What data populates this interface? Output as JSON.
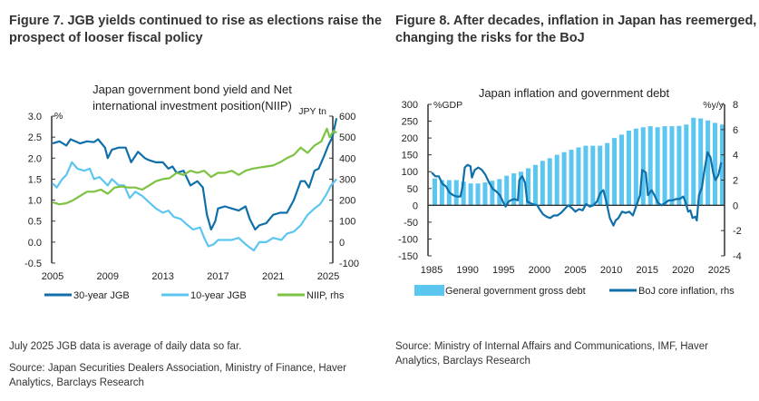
{
  "left_figure": {
    "title_line1": "Figure 7. JGB yields continued to rise as elections raise the",
    "title_line2": "prospect of looser fiscal policy",
    "note": "July 2025 JGB data is average of daily data so far.",
    "source_line1": "Source: Japan Securities Dealers Association, Ministry of Finance, Haver",
    "source_line2": "Analytics, Barclays Research"
  },
  "right_figure": {
    "title_line1": "Figure 8. After decades, inflation in Japan has reemerged,",
    "title_line2": "changing the risks for the BoJ",
    "source_line1": "Source: Ministry of Internal Affairs and Communications, IMF, Haver",
    "source_line2": "Analytics, Barclays Research"
  },
  "chart_data": [
    {
      "type": "line",
      "title_line1": "Japan government bond yield and Net",
      "title_line2": "international investment position(NIIP)",
      "ylabel": "%",
      "y2label": "JPY tn",
      "ylim": [
        -0.5,
        3.0
      ],
      "y2lim": [
        -100,
        600
      ],
      "xlim": [
        2005,
        2026
      ],
      "yticks": [
        "3.0",
        "2.5",
        "2.0",
        "1.5",
        "1.0",
        "0.5",
        "0.0",
        "-0.5"
      ],
      "y2ticks": [
        "600",
        "500",
        "400",
        "300",
        "200",
        "100",
        "0",
        "-100"
      ],
      "xticks": [
        "2005",
        "2009",
        "2013",
        "2017",
        "2021",
        "2025"
      ],
      "legend_position": "bottom",
      "series": [
        {
          "name": "30-year JGB",
          "axis": "left",
          "color": "#0f6fa8",
          "x": [
            2005,
            2005.5,
            2006,
            2006.3,
            2007,
            2007.5,
            2008,
            2008.3,
            2008.8,
            2009,
            2009.3,
            2009.8,
            2010.3,
            2010.7,
            2011.2,
            2011.7,
            2012,
            2012.5,
            2013,
            2013.4,
            2013.7,
            2014,
            2014.5,
            2015,
            2015.5,
            2015.9,
            2016.2,
            2016.5,
            2016.8,
            2017,
            2017.5,
            2018,
            2018.5,
            2019,
            2019.3,
            2019.7,
            2020,
            2020.5,
            2021,
            2021.5,
            2022,
            2022.5,
            2023,
            2023.3,
            2023.6,
            2024,
            2024.3,
            2024.7,
            2025,
            2025.3,
            2025.6
          ],
          "values": [
            2.35,
            2.4,
            2.3,
            2.45,
            2.35,
            2.4,
            2.38,
            2.45,
            2.25,
            2.0,
            2.2,
            2.25,
            2.25,
            1.9,
            2.15,
            2.0,
            1.95,
            1.9,
            1.9,
            1.75,
            1.8,
            1.65,
            1.7,
            1.35,
            1.45,
            1.3,
            0.65,
            0.3,
            0.5,
            0.8,
            0.85,
            0.8,
            0.75,
            0.85,
            0.55,
            0.3,
            0.4,
            0.45,
            0.65,
            0.7,
            0.7,
            1.0,
            1.45,
            1.45,
            1.3,
            1.7,
            1.75,
            2.05,
            2.3,
            2.5,
            2.95
          ]
        },
        {
          "name": "10-year JGB",
          "axis": "left",
          "color": "#5bc6f0",
          "x": [
            2005,
            2005.3,
            2005.7,
            2006,
            2006.4,
            2006.8,
            2007.3,
            2007.7,
            2008,
            2008.4,
            2008.7,
            2009,
            2009.3,
            2009.8,
            2010.2,
            2010.6,
            2011,
            2011.5,
            2012,
            2012.5,
            2013,
            2013.4,
            2013.8,
            2014.3,
            2014.8,
            2015.2,
            2015.7,
            2016,
            2016.3,
            2016.7,
            2017,
            2017.5,
            2018,
            2018.5,
            2019,
            2019.6,
            2020,
            2020.5,
            2021,
            2021.6,
            2022,
            2022.5,
            2023,
            2023.5,
            2024,
            2024.4,
            2024.8,
            2025.2,
            2025.6
          ],
          "values": [
            1.4,
            1.3,
            1.5,
            1.6,
            1.9,
            1.75,
            1.7,
            1.75,
            1.5,
            1.55,
            1.45,
            1.35,
            1.5,
            1.35,
            1.35,
            1.05,
            1.2,
            1.1,
            0.95,
            0.8,
            0.7,
            0.75,
            0.6,
            0.55,
            0.4,
            0.3,
            0.35,
            0.1,
            -0.1,
            -0.05,
            0.05,
            0.05,
            0.05,
            0.1,
            -0.05,
            -0.2,
            0.0,
            0.0,
            0.1,
            0.05,
            0.2,
            0.25,
            0.4,
            0.65,
            0.8,
            0.9,
            1.1,
            1.35,
            1.5
          ]
        },
        {
          "name": "NIIP, rhs",
          "axis": "right",
          "color": "#7dc242",
          "x": [
            2005,
            2005.5,
            2006,
            2006.5,
            2007,
            2007.5,
            2008,
            2008.5,
            2009,
            2009.5,
            2010,
            2010.5,
            2011,
            2011.5,
            2012,
            2012.5,
            2013,
            2013.5,
            2014,
            2014.5,
            2015,
            2015.5,
            2016,
            2016.5,
            2017,
            2017.5,
            2018,
            2018.5,
            2019,
            2019.5,
            2020,
            2020.5,
            2021,
            2021.5,
            2022,
            2022.5,
            2023,
            2023.5,
            2024,
            2024.5,
            2024.9,
            2025.1,
            2025.4,
            2025.6
          ],
          "values": [
            190,
            180,
            185,
            200,
            220,
            240,
            240,
            250,
            230,
            260,
            265,
            260,
            260,
            250,
            270,
            290,
            300,
            305,
            330,
            320,
            340,
            330,
            340,
            310,
            330,
            330,
            340,
            320,
            340,
            350,
            355,
            360,
            365,
            380,
            400,
            415,
            450,
            425,
            460,
            480,
            540,
            500,
            530,
            520
          ]
        }
      ]
    },
    {
      "type": "bar+line",
      "title": "Japan inflation and government debt",
      "ylabel": "%GDP",
      "y2label": "%y/y",
      "ylim": [
        -150,
        300
      ],
      "y2lim": [
        -4,
        8
      ],
      "xlim": [
        1985,
        2026
      ],
      "yticks": [
        "300",
        "250",
        "200",
        "150",
        "100",
        "50",
        "0",
        "-50",
        "-100",
        "-150"
      ],
      "y2ticks": [
        "8",
        "6",
        "4",
        "2",
        "0",
        "-2",
        "-4"
      ],
      "xticks": [
        "1985",
        "1990",
        "1995",
        "2000",
        "2005",
        "2010",
        "2015",
        "2020",
        "2025"
      ],
      "legend_position": "bottom",
      "bars": {
        "name": "General government gross debt",
        "axis": "left",
        "color": "#5bc6f0",
        "x": [
          1985,
          1986,
          1987,
          1988,
          1989,
          1990,
          1991,
          1992,
          1993,
          1994,
          1995,
          1996,
          1997,
          1998,
          1999,
          2000,
          2001,
          2002,
          2003,
          2004,
          2005,
          2006,
          2007,
          2008,
          2009,
          2010,
          2011,
          2012,
          2013,
          2014,
          2015,
          2016,
          2017,
          2018,
          2019,
          2020,
          2021,
          2022,
          2023,
          2024,
          2025
        ],
        "values": [
          80,
          75,
          75,
          75,
          70,
          65,
          65,
          68,
          73,
          78,
          88,
          95,
          100,
          110,
          120,
          132,
          140,
          150,
          158,
          165,
          172,
          177,
          177,
          177,
          185,
          200,
          210,
          222,
          228,
          232,
          235,
          232,
          235,
          235,
          236,
          240,
          260,
          258,
          252,
          245,
          240
        ]
      },
      "line": {
        "name": "BoJ core inflation, rhs",
        "axis": "right",
        "color": "#0f6fa8",
        "x": [
          1985,
          1985.5,
          1986,
          1986.5,
          1987,
          1987.5,
          1988,
          1988.5,
          1989,
          1989.3,
          1989.6,
          1990,
          1990.4,
          1990.6,
          1991,
          1991.5,
          1992,
          1992.5,
          1993,
          1993.5,
          1994,
          1994.5,
          1995,
          1995.3,
          1995.7,
          1996,
          1996.5,
          1997,
          1997.2,
          1997.6,
          1998,
          1998.3,
          1999,
          1999.7,
          2000,
          2000.5,
          2001,
          2001.5,
          2002,
          2002.5,
          2003,
          2003.5,
          2004,
          2004.5,
          2005,
          2005.5,
          2006,
          2006.5,
          2007,
          2007.5,
          2008,
          2008.5,
          2008.9,
          2009.3,
          2009.8,
          2010.3,
          2010.6,
          2011,
          2011.5,
          2012,
          2012.5,
          2013,
          2013.5,
          2014,
          2014.3,
          2014.8,
          2015.1,
          2015.6,
          2016,
          2016.5,
          2017,
          2017.5,
          2018,
          2018.5,
          2019,
          2019.5,
          2020,
          2020.3,
          2020.7,
          2021,
          2021.3,
          2021.7,
          2021.9,
          2022.2,
          2022.6,
          2023,
          2023.4,
          2023.8,
          2024.2,
          2024.5,
          2024.9,
          2025.3
        ],
        "values": [
          2.6,
          2.3,
          2.3,
          1.7,
          1.5,
          1.0,
          0.8,
          0.7,
          0.7,
          1.5,
          3.0,
          3.2,
          3.1,
          2.2,
          2.8,
          3.0,
          2.8,
          2.4,
          1.8,
          1.3,
          1.1,
          0.8,
          0.2,
          -0.1,
          0.3,
          0.4,
          0.5,
          0.4,
          2.0,
          2.3,
          1.8,
          0.3,
          0.1,
          0.0,
          -0.3,
          -0.7,
          -0.9,
          -1.0,
          -0.8,
          -0.8,
          -0.6,
          -0.3,
          0.0,
          -0.2,
          -0.5,
          -0.3,
          -0.4,
          0.1,
          -0.1,
          0.0,
          0.3,
          1.0,
          1.2,
          0.3,
          -1.0,
          -1.6,
          -1.2,
          -1.0,
          -0.5,
          -0.6,
          -0.5,
          -0.8,
          0.0,
          0.8,
          2.8,
          2.6,
          0.8,
          1.2,
          0.8,
          0.2,
          0.0,
          0.2,
          0.4,
          0.4,
          0.5,
          0.5,
          0.7,
          0.3,
          -0.5,
          -0.4,
          -1.0,
          -0.9,
          -1.2,
          0.8,
          1.4,
          2.9,
          4.2,
          3.8,
          2.5,
          2.0,
          2.4,
          3.4
        ]
      }
    }
  ]
}
